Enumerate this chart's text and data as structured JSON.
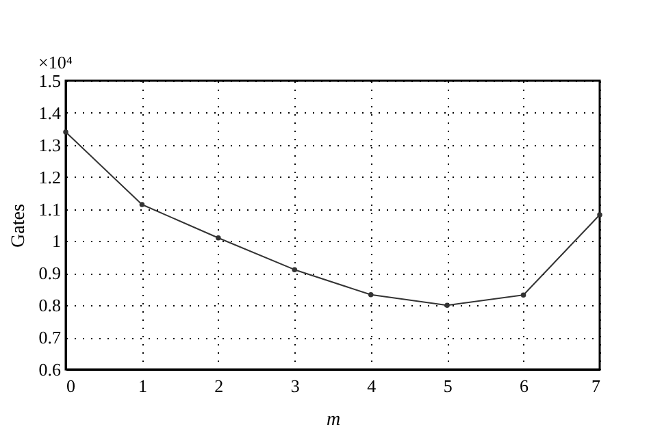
{
  "chart_data": {
    "type": "line",
    "xlabel": "m",
    "ylabel": "Gates",
    "annotations": [
      "×10⁴"
    ],
    "x": [
      0,
      1,
      2,
      3,
      4,
      5,
      6,
      7
    ],
    "series": [
      {
        "color": "#333333",
        "values": [
          1.34,
          1.114,
          1.01,
          0.911,
          0.833,
          0.8,
          0.832,
          1.082
        ]
      }
    ],
    "xlim": [
      0,
      7
    ],
    "xticks": [
      0,
      1,
      2,
      3,
      4,
      5,
      6,
      7
    ],
    "ylim": [
      0.6,
      1.5
    ],
    "yticks": [
      0.6,
      0.7,
      0.8,
      0.9,
      1,
      1.1,
      1.2,
      1.3,
      1.4,
      1.5
    ],
    "grid": true,
    "marker": "circle",
    "line_style": "solid"
  }
}
